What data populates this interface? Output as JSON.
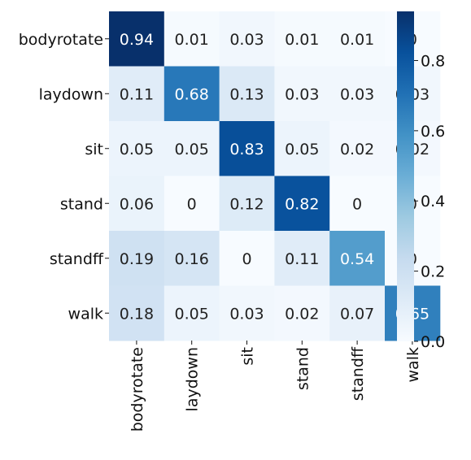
{
  "chart_data": {
    "type": "heatmap",
    "title": "",
    "xlabel": "",
    "ylabel": "",
    "rows": [
      "bodyrotate",
      "laydown",
      "sit",
      "stand",
      "standff",
      "walk"
    ],
    "columns": [
      "bodyrotate",
      "laydown",
      "sit",
      "stand",
      "standff",
      "walk"
    ],
    "values": [
      [
        0.94,
        0.01,
        0.03,
        0.01,
        0.01,
        0
      ],
      [
        0.11,
        0.68,
        0.13,
        0.03,
        0.03,
        0.03
      ],
      [
        0.05,
        0.05,
        0.83,
        0.05,
        0.02,
        0.02
      ],
      [
        0.06,
        0,
        0.12,
        0.82,
        0,
        0
      ],
      [
        0.19,
        0.16,
        0,
        0.11,
        0.54,
        0
      ],
      [
        0.18,
        0.05,
        0.03,
        0.02,
        0.07,
        0.65
      ]
    ],
    "colorbar": {
      "colormap": "Blues",
      "range": [
        0,
        0.94
      ],
      "ticks": [
        "0.0",
        "0.2",
        "0.4",
        "0.6",
        "0.8"
      ]
    }
  }
}
